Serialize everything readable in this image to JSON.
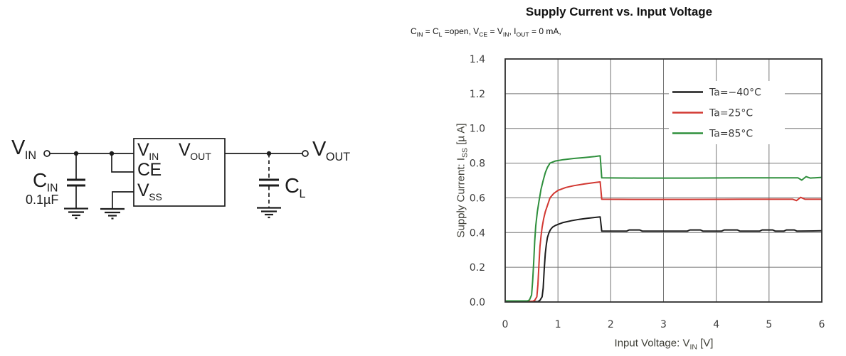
{
  "circuit": {
    "labels": {
      "vin_port": [
        {
          "t": "V"
        },
        {
          "s": "IN"
        }
      ],
      "cin_name": [
        {
          "t": "C"
        },
        {
          "s": "IN"
        }
      ],
      "cin_value": [
        {
          "t": "0.1µF"
        }
      ],
      "ic_pin_vin": [
        {
          "t": "V"
        },
        {
          "s": "IN"
        }
      ],
      "ic_pin_vout": [
        {
          "t": "V"
        },
        {
          "s": "OUT"
        }
      ],
      "ic_pin_ce": [
        {
          "t": "CE"
        }
      ],
      "ic_pin_vss": [
        {
          "t": "V"
        },
        {
          "s": "SS"
        }
      ],
      "cl_name": [
        {
          "t": "C"
        },
        {
          "s": "L"
        }
      ],
      "vout_port": [
        {
          "t": "V"
        },
        {
          "s": "OUT"
        }
      ]
    }
  },
  "chart": {
    "title": "Supply Current vs. Input Voltage",
    "conditions": [
      {
        "t": "C"
      },
      {
        "s": "IN"
      },
      {
        "t": " = C"
      },
      {
        "s": "L"
      },
      {
        "t": " =open, V"
      },
      {
        "s": "CE"
      },
      {
        "t": " = V"
      },
      {
        "s": "IN"
      },
      {
        "t": ", I"
      },
      {
        "s": "OUT"
      },
      {
        "t": " = 0 mA,"
      }
    ],
    "xlabel": [
      {
        "t": "Input Voltage: V"
      },
      {
        "s": "IN"
      },
      {
        "t": " [V]"
      }
    ],
    "ylabel": [
      {
        "t": "Supply Current: I"
      },
      {
        "s": "SS"
      },
      {
        "t": " [µ A]"
      }
    ]
  },
  "chart_data": {
    "type": "line",
    "title": "Supply Current vs. Input Voltage",
    "xlabel": "Input Voltage: VIN [V]",
    "ylabel": "Supply Current: ISS [µA]",
    "xlim": [
      0,
      6
    ],
    "ylim": [
      0,
      1.4
    ],
    "xticks": [
      "0",
      "1",
      "2",
      "3",
      "4",
      "5",
      "6"
    ],
    "yticks": [
      "0.0",
      "0.2",
      "0.4",
      "0.6",
      "0.8",
      "1.0",
      "1.2",
      "1.4"
    ],
    "grid": true,
    "legend_position": "top-right-inside",
    "series": [
      {
        "name": "Ta=−40°C",
        "color": "#1c1c1c",
        "points": [
          [
            0,
            0.002
          ],
          [
            0.62,
            0.002
          ],
          [
            0.66,
            0.01
          ],
          [
            0.7,
            0.03
          ],
          [
            0.72,
            0.08
          ],
          [
            0.74,
            0.19
          ],
          [
            0.76,
            0.28
          ],
          [
            0.78,
            0.33
          ],
          [
            0.8,
            0.37
          ],
          [
            0.83,
            0.4
          ],
          [
            0.86,
            0.418
          ],
          [
            0.9,
            0.432
          ],
          [
            0.95,
            0.441
          ],
          [
            1.0,
            0.447
          ],
          [
            1.1,
            0.458
          ],
          [
            1.25,
            0.468
          ],
          [
            1.4,
            0.476
          ],
          [
            1.55,
            0.482
          ],
          [
            1.7,
            0.487
          ],
          [
            1.8,
            0.49
          ],
          [
            1.83,
            0.408
          ],
          [
            2.0,
            0.408
          ],
          [
            2.3,
            0.408
          ],
          [
            2.35,
            0.415
          ],
          [
            2.55,
            0.415
          ],
          [
            2.6,
            0.408
          ],
          [
            3.45,
            0.408
          ],
          [
            3.5,
            0.415
          ],
          [
            3.7,
            0.415
          ],
          [
            3.75,
            0.408
          ],
          [
            4.1,
            0.408
          ],
          [
            4.15,
            0.415
          ],
          [
            4.4,
            0.415
          ],
          [
            4.45,
            0.408
          ],
          [
            4.82,
            0.408
          ],
          [
            4.87,
            0.415
          ],
          [
            5.07,
            0.415
          ],
          [
            5.12,
            0.408
          ],
          [
            5.28,
            0.408
          ],
          [
            5.33,
            0.415
          ],
          [
            5.48,
            0.415
          ],
          [
            5.53,
            0.408
          ],
          [
            6.0,
            0.41
          ]
        ]
      },
      {
        "name": "Ta=25°C",
        "color": "#d23832",
        "points": [
          [
            0,
            0.004
          ],
          [
            0.52,
            0.004
          ],
          [
            0.56,
            0.01
          ],
          [
            0.6,
            0.03
          ],
          [
            0.62,
            0.1
          ],
          [
            0.64,
            0.22
          ],
          [
            0.66,
            0.32
          ],
          [
            0.68,
            0.38
          ],
          [
            0.7,
            0.43
          ],
          [
            0.73,
            0.48
          ],
          [
            0.76,
            0.52
          ],
          [
            0.8,
            0.555
          ],
          [
            0.85,
            0.6
          ],
          [
            0.92,
            0.625
          ],
          [
            1.0,
            0.643
          ],
          [
            1.15,
            0.66
          ],
          [
            1.3,
            0.67
          ],
          [
            1.5,
            0.68
          ],
          [
            1.7,
            0.688
          ],
          [
            1.8,
            0.692
          ],
          [
            1.83,
            0.592
          ],
          [
            2.5,
            0.591
          ],
          [
            3.5,
            0.591
          ],
          [
            4.5,
            0.592
          ],
          [
            5.45,
            0.592
          ],
          [
            5.52,
            0.584
          ],
          [
            5.6,
            0.603
          ],
          [
            5.68,
            0.592
          ],
          [
            6.0,
            0.592
          ]
        ]
      },
      {
        "name": "Ta=85°C",
        "color": "#2e8f3c",
        "points": [
          [
            0,
            0.006
          ],
          [
            0.42,
            0.006
          ],
          [
            0.46,
            0.012
          ],
          [
            0.5,
            0.04
          ],
          [
            0.52,
            0.12
          ],
          [
            0.54,
            0.23
          ],
          [
            0.56,
            0.35
          ],
          [
            0.58,
            0.44
          ],
          [
            0.61,
            0.52
          ],
          [
            0.64,
            0.58
          ],
          [
            0.68,
            0.65
          ],
          [
            0.72,
            0.7
          ],
          [
            0.76,
            0.745
          ],
          [
            0.8,
            0.775
          ],
          [
            0.85,
            0.8
          ],
          [
            0.95,
            0.812
          ],
          [
            1.1,
            0.82
          ],
          [
            1.3,
            0.827
          ],
          [
            1.5,
            0.832
          ],
          [
            1.7,
            0.838
          ],
          [
            1.8,
            0.842
          ],
          [
            1.83,
            0.715
          ],
          [
            2.5,
            0.714
          ],
          [
            3.5,
            0.714
          ],
          [
            4.5,
            0.715
          ],
          [
            5.55,
            0.715
          ],
          [
            5.62,
            0.702
          ],
          [
            5.7,
            0.722
          ],
          [
            5.78,
            0.714
          ],
          [
            6.0,
            0.718
          ]
        ]
      }
    ],
    "colors": {
      "grid": "#757575",
      "border": "#2f2f2f",
      "tick_text": "#3c3c3c"
    }
  }
}
